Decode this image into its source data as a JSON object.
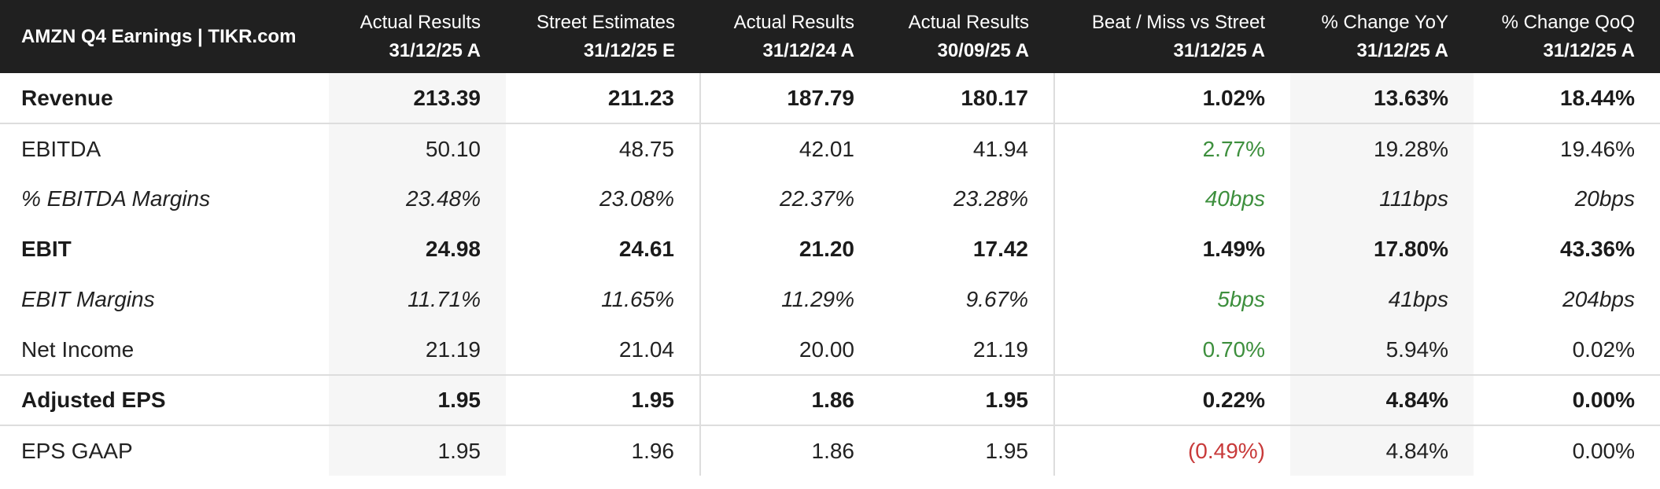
{
  "header": {
    "title": "AMZN Q4 Earnings | TIKR.com",
    "columns": [
      {
        "line1": "Actual Results",
        "line2": "31/12/25 A"
      },
      {
        "line1": "Street Estimates",
        "line2": "31/12/25 E"
      },
      {
        "line1": "Actual Results",
        "line2": "31/12/24 A"
      },
      {
        "line1": "Actual Results",
        "line2": "30/09/25 A"
      },
      {
        "line1": "Beat / Miss vs Street",
        "line2": "31/12/25 A"
      },
      {
        "line1": "% Change YoY",
        "line2": "31/12/25 A"
      },
      {
        "line1": "% Change QoQ",
        "line2": "31/12/25 A"
      }
    ]
  },
  "rows": [
    {
      "label": "Revenue",
      "values": [
        "213.39",
        "211.23",
        "187.79",
        "180.17",
        "1.02%",
        "13.63%",
        "18.44%"
      ]
    },
    {
      "label": "EBITDA",
      "values": [
        "50.10",
        "48.75",
        "42.01",
        "41.94",
        "2.77%",
        "19.28%",
        "19.46%"
      ]
    },
    {
      "label": "% EBITDA Margins",
      "values": [
        "23.48%",
        "23.08%",
        "22.37%",
        "23.28%",
        "40bps",
        "111bps",
        "20bps"
      ]
    },
    {
      "label": "EBIT",
      "values": [
        "24.98",
        "24.61",
        "21.20",
        "17.42",
        "1.49%",
        "17.80%",
        "43.36%"
      ]
    },
    {
      "label": "EBIT Margins",
      "values": [
        "11.71%",
        "11.65%",
        "11.29%",
        "9.67%",
        "5bps",
        "41bps",
        "204bps"
      ]
    },
    {
      "label": "Net Income",
      "values": [
        "21.19",
        "21.04",
        "20.00",
        "21.19",
        "0.70%",
        "5.94%",
        "0.02%"
      ]
    },
    {
      "label": "Adjusted EPS",
      "values": [
        "1.95",
        "1.95",
        "1.86",
        "1.95",
        "0.22%",
        "4.84%",
        "0.00%"
      ]
    },
    {
      "label": "EPS GAAP",
      "values": [
        "1.95",
        "1.96",
        "1.86",
        "1.95",
        "(0.49%)",
        "4.84%",
        "0.00%"
      ]
    }
  ],
  "colors": {
    "header_bg": "#202020",
    "beat": "#3d8f3d",
    "miss": "#c83a3a",
    "shade": "#f6f6f6"
  }
}
